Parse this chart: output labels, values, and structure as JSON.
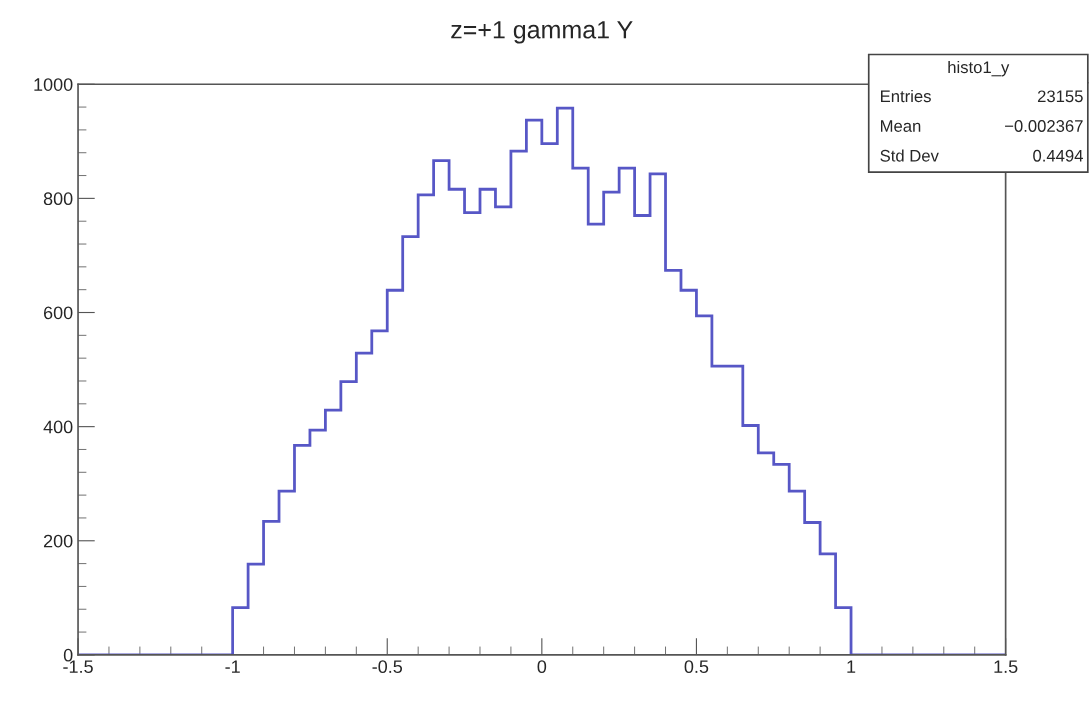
{
  "chart_data": {
    "type": "histogram",
    "title": "z=+1 gamma1 Y",
    "bins": [
      -1.5,
      -1.0,
      -0.95,
      -0.9,
      -0.85,
      -0.8,
      -0.75,
      -0.7,
      -0.65,
      -0.6,
      -0.55,
      -0.5,
      -0.45,
      -0.4,
      -0.35,
      -0.3,
      -0.25,
      -0.2,
      -0.15,
      -0.1,
      -0.05,
      0.0,
      0.05,
      0.1,
      0.15,
      0.2,
      0.25,
      0.3,
      0.35,
      0.4,
      0.45,
      0.5,
      0.55,
      0.6,
      0.65,
      0.7,
      0.75,
      0.8,
      0.85,
      0.9,
      0.95,
      1.0,
      1.5
    ],
    "values": [
      0,
      83,
      159,
      234,
      287,
      367,
      394,
      429,
      479,
      529,
      568,
      639,
      733,
      806,
      866,
      816,
      775,
      816,
      785,
      883,
      937,
      896,
      958,
      853,
      755,
      811,
      853,
      770,
      843,
      674,
      639,
      594,
      506,
      506,
      402,
      354,
      334,
      287,
      232,
      177,
      83,
      0
    ],
    "color": "#5757c6",
    "xlim": [
      -1.5,
      1.5
    ],
    "xticks": [
      -1.5,
      -1,
      -0.5,
      0,
      0.5,
      1,
      1.5
    ],
    "ylim": [
      0,
      1000
    ],
    "yticks": [
      0,
      200,
      400,
      600,
      800,
      1000
    ],
    "grid": false,
    "annotations": [
      "histo1_y",
      "Entries",
      "23155",
      "Mean",
      "−0.002367",
      "Std Dev",
      "0.4494"
    ]
  }
}
